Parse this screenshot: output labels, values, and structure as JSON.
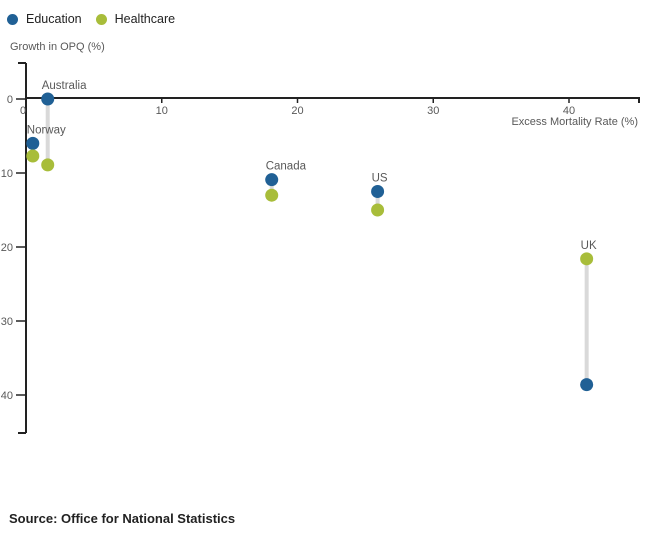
{
  "legend": {
    "items": [
      {
        "label": "Education",
        "color": "#206095"
      },
      {
        "label": "Healthcare",
        "color": "#a8bd3a"
      }
    ]
  },
  "axes": {
    "y_title": "Growth in OPQ (%)",
    "x_title": "Excess Mortality Rate (%)",
    "x_ticks": [
      0,
      10,
      20,
      30,
      40
    ],
    "y_ticks": [
      0,
      10,
      20,
      30,
      40
    ]
  },
  "source": {
    "text": "Source: Office for National Statistics"
  },
  "chart_data": {
    "type": "scatter",
    "subtype": "vertical-dumbbell",
    "title": "",
    "xlabel": "Excess Mortality Rate (%)",
    "ylabel": "Growth in OPQ (%)",
    "xlim": [
      0,
      45
    ],
    "ylim": [
      -5,
      45
    ],
    "y_axis_direction": "values increase downward",
    "grid": false,
    "legend_position": "top-left",
    "colors": {
      "education": "#206095",
      "healthcare": "#a8bd3a",
      "connector": "#d9d9d9",
      "axis": "#222222"
    },
    "series_names": [
      "Education",
      "Healthcare"
    ],
    "countries": [
      {
        "label": "Norway",
        "x": 0.5,
        "education": 6.0,
        "healthcare": 7.7
      },
      {
        "label": "Australia",
        "x": 1.6,
        "education": 0.0,
        "healthcare": 8.9
      },
      {
        "label": "Canada",
        "x": 18.1,
        "education": 10.9,
        "healthcare": 13.0
      },
      {
        "label": "US",
        "x": 25.9,
        "education": 12.5,
        "healthcare": 15.0
      },
      {
        "label": "UK",
        "x": 41.3,
        "education": 38.6,
        "healthcare": 21.6
      }
    ]
  }
}
